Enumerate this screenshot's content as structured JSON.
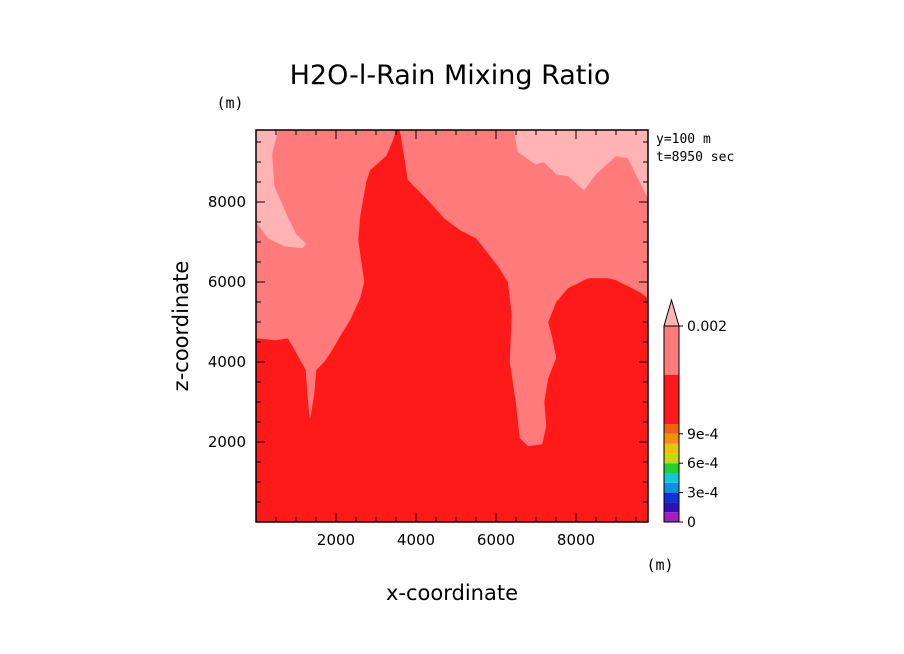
{
  "chart_data": {
    "type": "heatmap",
    "title": "H2O-l-Rain Mixing Ratio",
    "xlabel": "x-coordinate",
    "ylabel": "z-coordinate",
    "x_unit": "(m)",
    "y_unit": "(m)",
    "xlim": [
      0,
      9800
    ],
    "ylim": [
      0,
      9800
    ],
    "x_ticks": [
      2000,
      4000,
      6000,
      8000
    ],
    "y_ticks": [
      2000,
      4000,
      6000,
      8000
    ],
    "x_tick_labels": [
      "2000",
      "4000",
      "6000",
      "8000"
    ],
    "y_tick_labels": [
      "2000",
      "4000",
      "6000",
      "8000"
    ],
    "annotations": [
      "y=100 m",
      "t=8950 sec"
    ],
    "colorbar": {
      "labels": [
        {
          "text": "0.002",
          "value": 0.002
        },
        {
          "text": "9e-4",
          "value": 0.0009
        },
        {
          "text": "6e-4",
          "value": 0.0006
        },
        {
          "text": "3e-4",
          "value": 0.0003
        },
        {
          "text": "0",
          "value": 0
        }
      ],
      "bins": [
        {
          "lo": 0,
          "hi": 0.0001,
          "color": "#a020c0"
        },
        {
          "lo": 0.0001,
          "hi": 0.0002,
          "color": "#3010b0"
        },
        {
          "lo": 0.0002,
          "hi": 0.0003,
          "color": "#1030d8"
        },
        {
          "lo": 0.0003,
          "hi": 0.0004,
          "color": "#1090e0"
        },
        {
          "lo": 0.0004,
          "hi": 0.0005,
          "color": "#10c8d8"
        },
        {
          "lo": 0.0005,
          "hi": 0.0006,
          "color": "#20d030"
        },
        {
          "lo": 0.0006,
          "hi": 0.0007,
          "color": "#c8d810"
        },
        {
          "lo": 0.0007,
          "hi": 0.0008,
          "color": "#f0c010"
        },
        {
          "lo": 0.0008,
          "hi": 0.0009,
          "color": "#f09010"
        },
        {
          "lo": 0.0009,
          "hi": 0.001,
          "color": "#f06010"
        },
        {
          "lo": 0.001,
          "hi": 0.0015,
          "color": "#ff1a1a"
        },
        {
          "lo": 0.0015,
          "hi": 0.002,
          "color": "#ff7b7b"
        },
        {
          "lo": 0.002,
          "hi": null,
          "color": "#ffb3b3"
        }
      ]
    },
    "regions": [
      {
        "level": "0.001-0.0015",
        "color": "#ff1a1a",
        "polygon": [
          [
            0,
            0
          ],
          [
            9800,
            0
          ],
          [
            9800,
            9800
          ],
          [
            0,
            9800
          ]
        ]
      },
      {
        "level": "0.0015-0.002",
        "color": "#ff7b7b",
        "polygon": [
          [
            0,
            9800
          ],
          [
            3500,
            9800
          ],
          [
            3400,
            9500
          ],
          [
            3250,
            9150
          ],
          [
            2850,
            8800
          ],
          [
            2750,
            8500
          ],
          [
            2600,
            7650
          ],
          [
            2550,
            7050
          ],
          [
            2700,
            6000
          ],
          [
            2600,
            5600
          ],
          [
            2350,
            5050
          ],
          [
            2100,
            4650
          ],
          [
            1900,
            4300
          ],
          [
            1700,
            4000
          ],
          [
            1500,
            3800
          ],
          [
            1450,
            3200
          ],
          [
            1350,
            2600
          ],
          [
            1300,
            3100
          ],
          [
            1250,
            3800
          ],
          [
            800,
            4600
          ],
          [
            500,
            4550
          ],
          [
            0,
            4600
          ]
        ]
      },
      {
        "level": "0.0015-0.002",
        "color": "#ff7b7b",
        "polygon": [
          [
            3600,
            9800
          ],
          [
            9800,
            9800
          ],
          [
            9800,
            5600
          ],
          [
            9600,
            5750
          ],
          [
            9300,
            5900
          ],
          [
            9000,
            6050
          ],
          [
            8800,
            6100
          ],
          [
            8300,
            6100
          ],
          [
            7800,
            5850
          ],
          [
            7500,
            5500
          ],
          [
            7300,
            5000
          ],
          [
            7400,
            4600
          ],
          [
            7500,
            4100
          ],
          [
            7300,
            3600
          ],
          [
            7200,
            3000
          ],
          [
            7250,
            2400
          ],
          [
            7150,
            1950
          ],
          [
            6800,
            1900
          ],
          [
            6600,
            2100
          ],
          [
            6500,
            3000
          ],
          [
            6350,
            4000
          ],
          [
            6400,
            5200
          ],
          [
            6300,
            6000
          ],
          [
            6050,
            6400
          ],
          [
            5700,
            6850
          ],
          [
            5500,
            7100
          ],
          [
            5100,
            7300
          ],
          [
            4700,
            7600
          ],
          [
            4300,
            8050
          ],
          [
            3800,
            8550
          ],
          [
            3700,
            9200
          ]
        ]
      },
      {
        "level": ">0.002",
        "color": "#ffb3b3",
        "polygon": [
          [
            0,
            9800
          ],
          [
            550,
            9800
          ],
          [
            400,
            9200
          ],
          [
            450,
            8400
          ],
          [
            800,
            7600
          ],
          [
            1000,
            7200
          ],
          [
            1250,
            6950
          ],
          [
            1150,
            6850
          ],
          [
            700,
            6900
          ],
          [
            300,
            7100
          ],
          [
            0,
            7500
          ]
        ]
      },
      {
        "level": ">0.002",
        "color": "#ffb3b3",
        "polygon": [
          [
            6450,
            9800
          ],
          [
            9800,
            9800
          ],
          [
            9800,
            8100
          ],
          [
            9500,
            8700
          ],
          [
            9300,
            9100
          ],
          [
            9000,
            9150
          ],
          [
            8500,
            8700
          ],
          [
            8200,
            8300
          ],
          [
            7800,
            8650
          ],
          [
            7500,
            8700
          ],
          [
            7200,
            9000
          ],
          [
            7000,
            8950
          ],
          [
            6900,
            9000
          ],
          [
            6700,
            9150
          ],
          [
            6550,
            9250
          ]
        ]
      }
    ]
  }
}
